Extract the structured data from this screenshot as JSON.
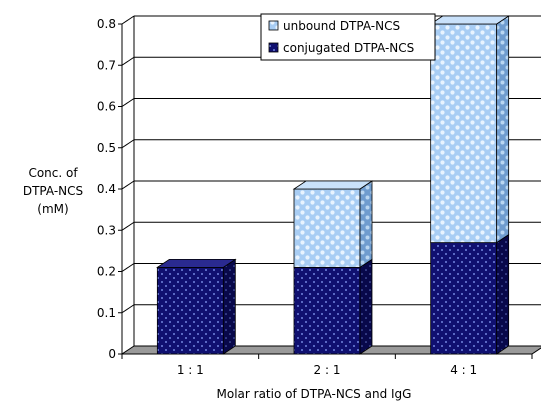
{
  "chart_data": {
    "type": "bar",
    "stacked": true,
    "three_d": true,
    "categories": [
      "1 : 1",
      "2 : 1",
      "4 : 1"
    ],
    "series": [
      {
        "name": "conjugated DTPA-NCS",
        "values": [
          0.21,
          0.21,
          0.27
        ],
        "color": "#1a1a7a",
        "pattern": "dark-blue-dotted"
      },
      {
        "name": "unbound DTPA-NCS",
        "values": [
          0.0,
          0.19,
          0.53
        ],
        "color": "#a9cdf2",
        "pattern": "light-blue-circles"
      }
    ],
    "xlabel": "Molar ratio of DTPA-NCS and IgG",
    "ylabel_lines": [
      "Conc. of",
      "DTPA-NCS",
      "(mM)"
    ],
    "y_ticks": [
      "0",
      "0.1",
      "0.2",
      "0.3",
      "0.4",
      "0.5",
      "0.6",
      "0.7",
      "0.8"
    ],
    "ylim": [
      0,
      0.8
    ],
    "grid": true,
    "legend_position": "top-right",
    "legend_order": [
      "unbound DTPA-NCS",
      "conjugated DTPA-NCS"
    ]
  }
}
